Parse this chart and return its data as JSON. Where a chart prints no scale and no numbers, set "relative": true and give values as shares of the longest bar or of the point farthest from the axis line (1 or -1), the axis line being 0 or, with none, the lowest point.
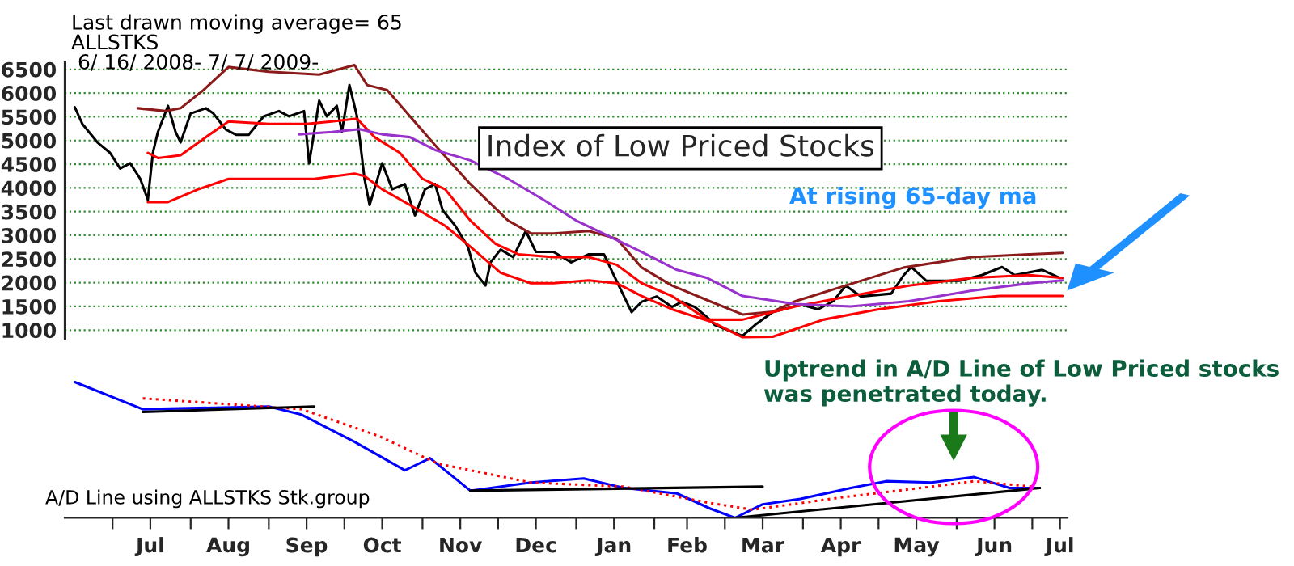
{
  "chart_data": [
    {
      "type": "line",
      "title": "Index of Low Priced Stocks",
      "xlim": [
        "2008-06-12",
        "2009-07-15"
      ],
      "ylim": [
        800,
        6650
      ],
      "yticks": [
        1000,
        1500,
        2000,
        2500,
        3000,
        3500,
        4000,
        4500,
        5000,
        5500,
        6000,
        6500
      ],
      "grid": "y",
      "legend": false,
      "tick_labels": "y",
      "marker": "none",
      "annotations": [
        "Last drawn moving average= 65",
        "ALLSTKS",
        "6/ 16/ 2008- 7/ 7/ 2009-",
        "At rising 65-day ma",
        "Uptrend in A/D Line of Low Priced stocks was penetrated today."
      ],
      "series": [
        {
          "color": "#000000",
          "x": [
            "2008-06-16",
            "2008-06-19",
            "2008-06-25",
            "2008-06-30",
            "2008-07-04",
            "2008-07-08",
            "2008-07-12",
            "2008-07-15",
            "2008-07-17",
            "2008-07-19",
            "2008-07-23",
            "2008-07-26",
            "2008-07-28",
            "2008-08-01",
            "2008-08-07",
            "2008-08-10",
            "2008-08-15",
            "2008-08-19",
            "2008-08-24",
            "2008-08-30",
            "2008-09-05",
            "2008-09-09",
            "2008-09-15",
            "2008-09-17",
            "2008-09-21",
            "2008-09-24",
            "2008-09-28",
            "2008-09-30",
            "2008-10-03",
            "2008-10-06",
            "2008-10-09",
            "2008-10-11",
            "2008-10-16",
            "2008-10-20",
            "2008-10-25",
            "2008-10-29",
            "2008-11-02",
            "2008-11-06",
            "2008-11-09",
            "2008-11-14",
            "2008-11-19",
            "2008-11-22",
            "2008-11-26",
            "2008-11-28",
            "2008-12-02",
            "2008-12-07",
            "2008-12-12",
            "2008-12-16",
            "2008-12-23",
            "2008-12-30",
            "2009-01-06",
            "2009-01-12",
            "2009-01-16",
            "2009-01-21",
            "2009-01-23",
            "2009-01-27",
            "2009-02-02",
            "2009-02-08",
            "2009-02-12",
            "2009-02-17",
            "2009-02-22",
            "2009-02-25",
            "2009-03-08",
            "2009-03-13",
            "2009-03-20",
            "2009-03-31",
            "2009-04-07",
            "2009-04-13",
            "2009-04-18",
            "2009-04-24",
            "2009-05-06",
            "2009-05-11",
            "2009-05-14",
            "2009-05-20",
            "2009-06-02",
            "2009-06-11",
            "2009-06-19",
            "2009-06-24",
            "2009-07-05",
            "2009-07-12"
          ],
          "values": [
            5700,
            5350,
            4960,
            4740,
            4410,
            4520,
            4190,
            3750,
            4740,
            5180,
            5730,
            5180,
            4960,
            5570,
            5680,
            5570,
            5230,
            5120,
            5120,
            5510,
            5620,
            5510,
            5620,
            4520,
            5840,
            5510,
            5730,
            5180,
            6170,
            5510,
            4190,
            3640,
            4520,
            3970,
            4080,
            3420,
            3970,
            4080,
            3530,
            3200,
            2760,
            2210,
            1940,
            2430,
            2700,
            2540,
            3090,
            2650,
            2650,
            2430,
            2600,
            2600,
            2150,
            1600,
            1380,
            1600,
            1710,
            1490,
            1600,
            1490,
            1270,
            1110,
            880,
            1110,
            1380,
            1540,
            1440,
            1610,
            1940,
            1710,
            1770,
            2160,
            2330,
            2040,
            2040,
            2160,
            2330,
            2160,
            2270,
            2100
          ]
        },
        {
          "color": "#8b1a1a",
          "x": [
            "2008-07-11",
            "2008-07-22",
            "2008-07-28",
            "2008-08-06",
            "2008-08-16",
            "2008-09-01",
            "2008-09-21",
            "2008-10-05",
            "2008-10-10",
            "2008-10-18",
            "2008-10-27",
            "2008-11-06",
            "2008-11-20",
            "2008-12-05",
            "2008-12-14",
            "2008-12-23",
            "2009-01-06",
            "2009-01-17",
            "2009-01-27",
            "2009-02-08",
            "2009-02-23",
            "2009-03-08",
            "2009-03-20",
            "2009-03-29",
            "2009-04-18",
            "2009-05-11",
            "2009-06-07",
            "2009-06-30",
            "2009-07-13"
          ],
          "values": [
            5680,
            5620,
            5680,
            6060,
            6550,
            6450,
            6390,
            6590,
            6170,
            6060,
            5510,
            4900,
            4080,
            3310,
            3040,
            3040,
            3090,
            2930,
            2320,
            1940,
            1610,
            1330,
            1390,
            1610,
            1940,
            2320,
            2540,
            2600,
            2630
          ]
        },
        {
          "color": "#ff0000",
          "x": [
            "2008-07-15",
            "2008-07-19",
            "2008-07-28",
            "2008-08-07",
            "2008-08-16",
            "2008-09-01",
            "2008-09-16",
            "2008-09-26",
            "2008-10-06",
            "2008-10-13",
            "2008-10-23",
            "2008-11-01",
            "2008-11-10",
            "2008-11-20",
            "2008-11-30",
            "2008-12-09",
            "2008-12-23",
            "2009-01-06",
            "2009-01-17",
            "2009-01-27",
            "2009-02-08",
            "2009-02-22",
            "2009-03-08",
            "2009-03-29",
            "2009-04-20",
            "2009-05-13",
            "2009-06-07",
            "2009-06-30",
            "2009-07-13"
          ],
          "values": [
            4740,
            4630,
            4690,
            5070,
            5400,
            5350,
            5350,
            5400,
            5460,
            5070,
            4740,
            4190,
            3970,
            3310,
            2820,
            2600,
            2540,
            2540,
            2380,
            1990,
            1720,
            1220,
            1220,
            1500,
            1720,
            1940,
            2100,
            2160,
            2100
          ]
        },
        {
          "color": "#ff0000",
          "x": [
            "2008-07-15",
            "2008-07-23",
            "2008-08-04",
            "2008-08-16",
            "2008-09-01",
            "2008-09-19",
            "2008-10-05",
            "2008-10-09",
            "2008-10-16",
            "2008-10-27",
            "2008-11-10",
            "2008-11-20",
            "2008-12-02",
            "2008-12-14",
            "2008-12-23",
            "2009-01-06",
            "2009-01-17",
            "2009-01-27",
            "2009-02-08",
            "2009-02-24",
            "2009-03-08",
            "2009-03-20",
            "2009-04-09",
            "2009-05-01",
            "2009-05-25",
            "2009-06-18",
            "2009-07-13"
          ],
          "values": [
            3700,
            3700,
            3970,
            4190,
            4190,
            4190,
            4300,
            4250,
            3970,
            3640,
            3200,
            2760,
            2210,
            1990,
            1990,
            2050,
            1990,
            1720,
            1440,
            1170,
            850,
            860,
            1220,
            1440,
            1610,
            1720,
            1720
          ]
        },
        {
          "color": "#9932cc",
          "x": [
            "2008-09-13",
            "2008-09-26",
            "2008-10-07",
            "2008-10-16",
            "2008-10-27",
            "2008-11-06",
            "2008-11-20",
            "2008-12-05",
            "2008-12-19",
            "2009-01-01",
            "2009-01-14",
            "2009-01-27",
            "2009-02-10",
            "2009-02-22",
            "2009-03-08",
            "2009-03-29",
            "2009-04-20",
            "2009-05-13",
            "2009-06-07",
            "2009-06-30",
            "2009-07-13"
          ],
          "values": [
            5130,
            5180,
            5240,
            5130,
            5070,
            4800,
            4580,
            4190,
            3750,
            3310,
            2980,
            2650,
            2270,
            2100,
            1720,
            1550,
            1500,
            1610,
            1830,
            1990,
            2050
          ]
        }
      ]
    },
    {
      "type": "line",
      "relative": true,
      "xlim": [
        "2008-06-12",
        "2009-07-15"
      ],
      "tick_labels": "x",
      "legend": false,
      "grid": false,
      "marker": "none",
      "xticks": [
        {
          "value": "2008-07-01",
          "label": null
        },
        {
          "value": "2008-07-16",
          "label": "Jul"
        },
        {
          "value": "2008-08-01",
          "label": null
        },
        {
          "value": "2008-08-16",
          "label": "Aug"
        },
        {
          "value": "2008-09-01",
          "label": null
        },
        {
          "value": "2008-09-16",
          "label": "Sep"
        },
        {
          "value": "2008-10-01",
          "label": null
        },
        {
          "value": "2008-10-16",
          "label": "Oct"
        },
        {
          "value": "2008-11-01",
          "label": null
        },
        {
          "value": "2008-11-16",
          "label": "Nov"
        },
        {
          "value": "2008-12-01",
          "label": null
        },
        {
          "value": "2008-12-16",
          "label": "Dec"
        },
        {
          "value": "2009-01-01",
          "label": null
        },
        {
          "value": "2009-01-16",
          "label": "Jan"
        },
        {
          "value": "2009-02-01",
          "label": null
        },
        {
          "value": "2009-02-14",
          "label": "Feb"
        },
        {
          "value": "2009-03-01",
          "label": null
        },
        {
          "value": "2009-03-16",
          "label": "Mar"
        },
        {
          "value": "2009-04-01",
          "label": null
        },
        {
          "value": "2009-04-16",
          "label": "Apr"
        },
        {
          "value": "2009-05-01",
          "label": null
        },
        {
          "value": "2009-05-16",
          "label": "May"
        },
        {
          "value": "2009-06-01",
          "label": null
        },
        {
          "value": "2009-06-16",
          "label": "Jun"
        },
        {
          "value": "2009-07-01",
          "label": null
        },
        {
          "value": "2009-07-12",
          "label": "Jul"
        }
      ],
      "annotations": [
        "A/D Line using ALLSTKS Stk.group"
      ],
      "series": [
        {
          "color": "#0000ff",
          "x": [
            "2008-06-16",
            "2008-07-13",
            "2008-09-01",
            "2008-09-14",
            "2008-10-05",
            "2008-10-25",
            "2008-11-04",
            "2008-11-20",
            "2008-12-14",
            "2009-01-04",
            "2009-01-20",
            "2009-02-10",
            "2009-02-23",
            "2009-03-05",
            "2009-03-16",
            "2009-03-31",
            "2009-04-20",
            "2009-05-04",
            "2009-05-22",
            "2009-06-08",
            "2009-06-22",
            "2009-07-04"
          ],
          "values": [
            1,
            0.8,
            0.82,
            0.76,
            0.56,
            0.35,
            0.44,
            0.2,
            0.26,
            0.29,
            0.22,
            0.18,
            0.07,
            0,
            0.1,
            0.14,
            0.22,
            0.27,
            0.26,
            0.3,
            0.22,
            0.22
          ]
        },
        {
          "color": "#ff0000",
          "line_style": "dotted",
          "x": [
            "2008-07-13",
            "2008-09-14",
            "2008-10-15",
            "2008-11-07",
            "2008-12-14",
            "2009-01-20",
            "2009-02-23",
            "2009-03-12",
            "2009-04-16",
            "2009-05-22",
            "2009-06-08",
            "2009-07-01"
          ],
          "values": [
            0.88,
            0.8,
            0.6,
            0.4,
            0.26,
            0.23,
            0.11,
            0.06,
            0.15,
            0.23,
            0.27,
            0.23
          ]
        },
        {
          "color": "#000000",
          "x": [
            "2008-07-13",
            "2008-09-19"
          ],
          "values": [
            0.78,
            0.82
          ]
        },
        {
          "color": "#000000",
          "x": [
            "2008-11-20",
            "2009-03-16"
          ],
          "values": [
            0.2,
            0.23
          ]
        },
        {
          "color": "#000000",
          "x": [
            "2009-03-05",
            "2009-07-04"
          ],
          "values": [
            0,
            0.22
          ]
        }
      ]
    }
  ]
}
